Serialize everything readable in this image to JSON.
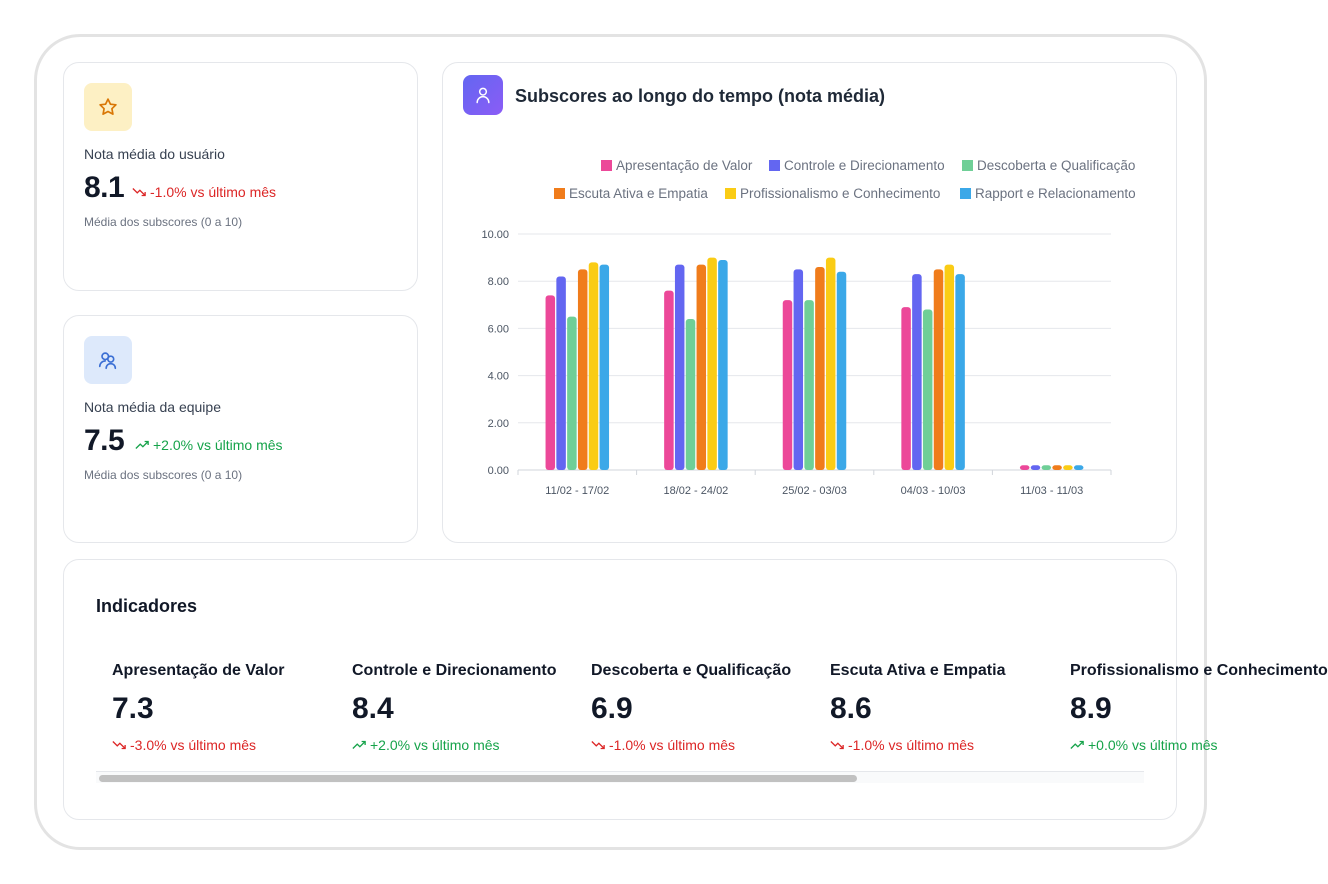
{
  "user_card": {
    "label": "Nota média do usuário",
    "value": "8.1",
    "delta": "-1.0% vs último mês",
    "note": "Média dos subscores (0 a 10)",
    "icon": "star-icon",
    "trend": "down"
  },
  "team_card": {
    "label": "Nota média da equipe",
    "value": "7.5",
    "delta": "+2.0% vs último mês",
    "note": "Média dos subscores (0 a 10)",
    "icon": "users-icon",
    "trend": "up"
  },
  "chart_card": {
    "title": "Subscores ao longo do tempo (nota média)",
    "icon": "user-icon"
  },
  "chart_data": {
    "type": "bar",
    "title": "Subscores ao longo do tempo (nota média)",
    "categories": [
      "11/02 - 17/02",
      "18/02 - 24/02",
      "25/02 - 03/03",
      "04/03 - 10/03",
      "11/03 - 11/03"
    ],
    "ylim": [
      0,
      10
    ],
    "yticks": [
      "0.00",
      "2.00",
      "4.00",
      "6.00",
      "8.00",
      "10.00"
    ],
    "grid": true,
    "legend_position": "top-right",
    "series": [
      {
        "name": "Apresentação de Valor",
        "color": "#ec4899",
        "values": [
          7.4,
          7.6,
          7.2,
          6.9,
          0.2
        ]
      },
      {
        "name": "Controle e Direcionamento",
        "color": "#6366f1",
        "values": [
          8.2,
          8.7,
          8.5,
          8.3,
          0.2
        ]
      },
      {
        "name": "Descoberta e Qualificação",
        "color": "#6fcf97",
        "values": [
          6.5,
          6.4,
          7.2,
          6.8,
          0.2
        ]
      },
      {
        "name": "Escuta Ativa e Empatia",
        "color": "#f07c1b",
        "values": [
          8.5,
          8.7,
          8.6,
          8.5,
          0.2
        ]
      },
      {
        "name": "Profissionalismo e Conhecimento",
        "color": "#facc15",
        "values": [
          8.8,
          9.0,
          9.0,
          8.7,
          0.2
        ]
      },
      {
        "name": "Rapport e Relacionamento",
        "color": "#3ba8e8",
        "values": [
          8.7,
          8.9,
          8.4,
          8.3,
          0.2
        ]
      }
    ]
  },
  "indicators": {
    "title": "Indicadores",
    "items": [
      {
        "name": "Apresentação de Valor",
        "value": "7.3",
        "delta": "-3.0% vs último mês",
        "trend": "down"
      },
      {
        "name": "Controle e Direcionamento",
        "value": "8.4",
        "delta": "+2.0% vs último mês",
        "trend": "up"
      },
      {
        "name": "Descoberta e Qualificação",
        "value": "6.9",
        "delta": "-1.0% vs último mês",
        "trend": "down"
      },
      {
        "name": "Escuta Ativa e Empatia",
        "value": "8.6",
        "delta": "-1.0% vs último mês",
        "trend": "down"
      },
      {
        "name": "Profissionalismo e Conhecimento",
        "value": "8.9",
        "delta": "+0.0% vs último mês",
        "trend": "up"
      }
    ]
  },
  "colors": {
    "down": "#dc2626",
    "up": "#16a34a",
    "star_bg": "#fdf0c4",
    "users_bg": "#dde9fb"
  }
}
